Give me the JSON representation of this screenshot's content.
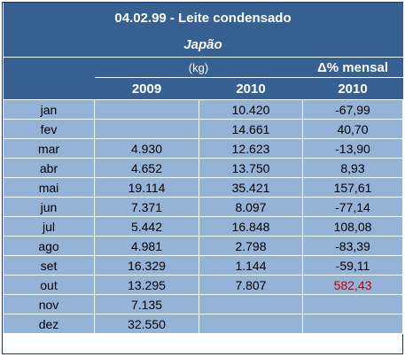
{
  "title": "04.02.99 - Leite condensado",
  "subtitle": "Japão",
  "unit_label": "(kg)",
  "change_label": "Δ% mensal",
  "years": {
    "col1": "2009",
    "col2": "2010",
    "col3": "2010"
  },
  "highlight_color": "#c00000",
  "rows": [
    {
      "month": "jan",
      "y2009": "",
      "y2010": "10.420",
      "change": "-67,99"
    },
    {
      "month": "fev",
      "y2009": "",
      "y2010": "14.661",
      "change": "40,70"
    },
    {
      "month": "mar",
      "y2009": "4.930",
      "y2010": "12.623",
      "change": "-13,90"
    },
    {
      "month": "abr",
      "y2009": "4.652",
      "y2010": "13.750",
      "change": "8,93"
    },
    {
      "month": "mai",
      "y2009": "19.114",
      "y2010": "35.421",
      "change": "157,61"
    },
    {
      "month": "jun",
      "y2009": "7.371",
      "y2010": "8.097",
      "change": "-77,14"
    },
    {
      "month": "jul",
      "y2009": "5.442",
      "y2010": "16.848",
      "change": "108,08"
    },
    {
      "month": "ago",
      "y2009": "4.981",
      "y2010": "2.798",
      "change": "-83,39"
    },
    {
      "month": "set",
      "y2009": "16.329",
      "y2010": "1.144",
      "change": "-59,11"
    },
    {
      "month": "out",
      "y2009": "13.295",
      "y2010": "7.807",
      "change": "582,43"
    },
    {
      "month": "nov",
      "y2009": "7.135",
      "y2010": "",
      "change": ""
    },
    {
      "month": "dez",
      "y2009": "32.550",
      "y2010": "",
      "change": ""
    }
  ]
}
